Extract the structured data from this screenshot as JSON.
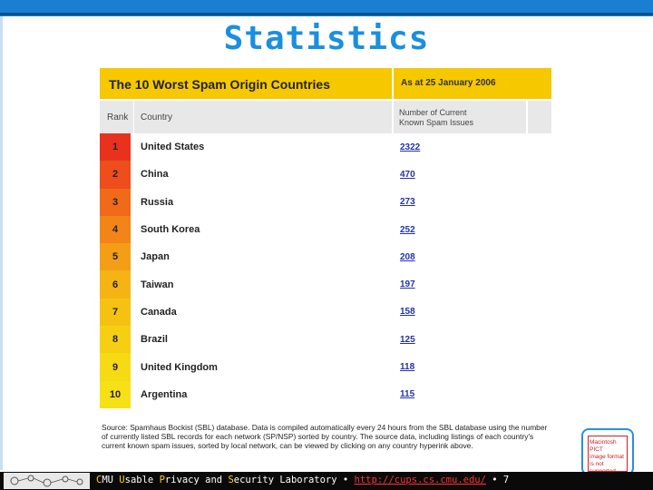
{
  "slide": {
    "title": "Statistics"
  },
  "table": {
    "heading": "The 10 Worst Spam Origin Countries",
    "date_note": "As at 25 January 2006",
    "col_rank": "Rank",
    "col_country": "Country",
    "col_number_line1": "Number of Current",
    "col_number_line2": "Known Spam Issues",
    "rows": [
      {
        "rank": "1",
        "country": "United States",
        "count": "2322"
      },
      {
        "rank": "2",
        "country": "China",
        "count": "470"
      },
      {
        "rank": "3",
        "country": "Russia",
        "count": "273"
      },
      {
        "rank": "4",
        "country": "South Korea",
        "count": "252"
      },
      {
        "rank": "5",
        "country": "Japan",
        "count": "208"
      },
      {
        "rank": "6",
        "country": "Taiwan",
        "count": "197"
      },
      {
        "rank": "7",
        "country": "Canada",
        "count": "158"
      },
      {
        "rank": "8",
        "country": "Brazil",
        "count": "125"
      },
      {
        "rank": "9",
        "country": "United Kingdom",
        "count": "118"
      },
      {
        "rank": "10",
        "country": "Argentina",
        "count": "115"
      }
    ],
    "rank_colors": [
      "#e8321e",
      "#ee4d1c",
      "#f06a1a",
      "#f28418",
      "#f49e16",
      "#f5b314",
      "#f5c212",
      "#f6cf12",
      "#f6da14",
      "#f6e016"
    ],
    "source": "Source: Spamhaus Bockist (SBL) database. Data is compiled automatically every 24 hours from the SBL database using the number of currently listed SBL records for each network (SP/NSP) sorted by country. The source data, including listings of each country's current known spam issues, sorted by local network, can be viewed by clicking on any country hyperink above."
  },
  "badge": {
    "line1": "Macintosh PICT",
    "line2": "image format",
    "line3": "is not supported"
  },
  "footer": {
    "c": "C",
    "mu": "MU ",
    "u": "U",
    "sable": "sable ",
    "p": "P",
    "rivacy": "rivacy and ",
    "s": "S",
    "ecurity": "ecurity Laboratory • ",
    "link": "http://cups.cs.cmu.edu/",
    "tail": " • 7"
  }
}
